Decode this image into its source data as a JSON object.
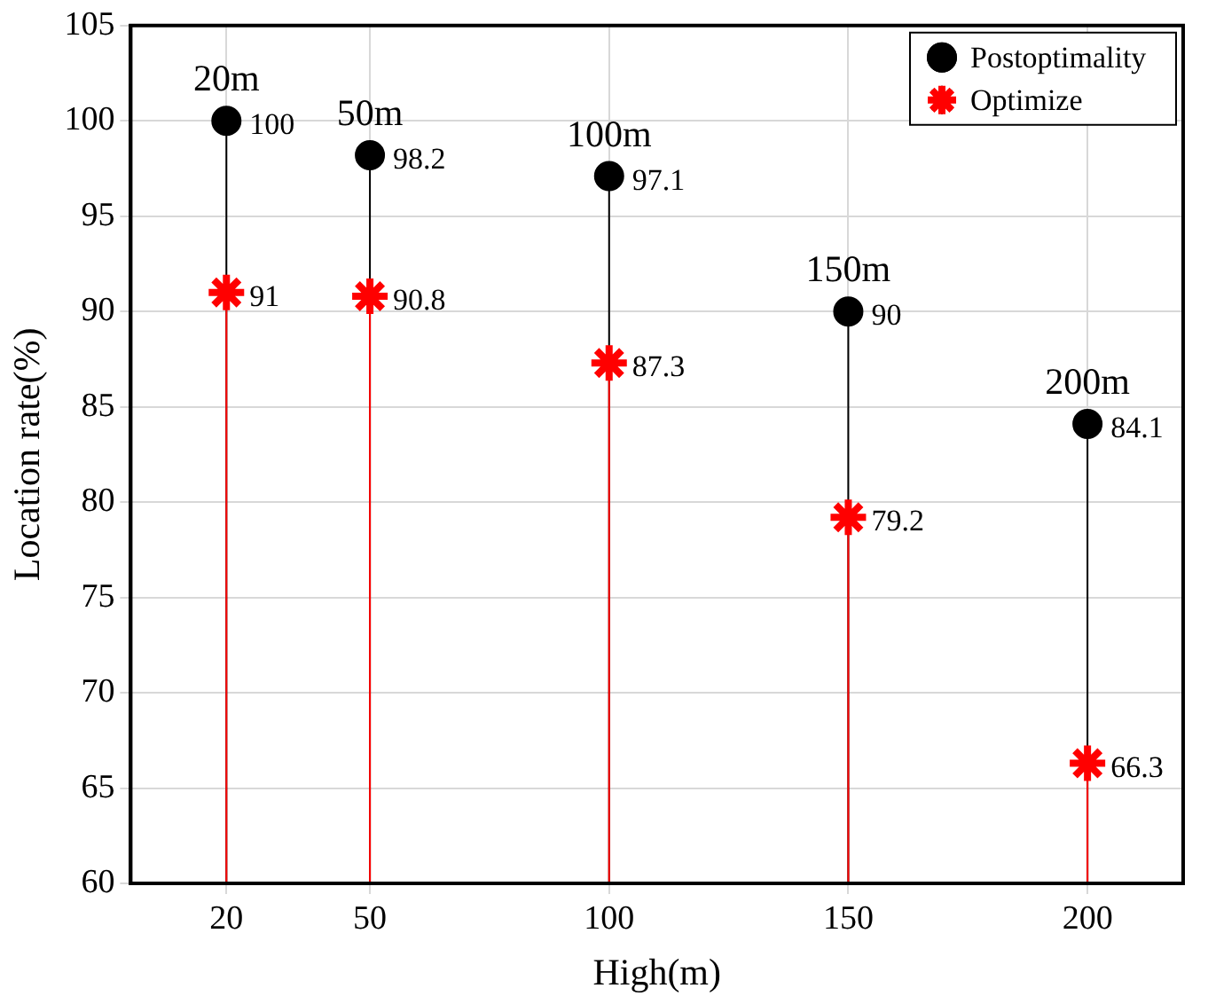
{
  "chart_data": {
    "type": "lollipop",
    "xlabel": "High(m)",
    "ylabel": "Location rate(%)",
    "x": [
      20,
      50,
      100,
      150,
      200
    ],
    "series": [
      {
        "name": "Postoptimality",
        "color": "#000000",
        "marker": "circle",
        "values": [
          100,
          98.2,
          97.1,
          90,
          84.1
        ]
      },
      {
        "name": "Optimize",
        "color": "#ff0000",
        "marker": "cross",
        "values": [
          91,
          90.8,
          87.3,
          79.2,
          66.3
        ]
      }
    ],
    "xlim": [
      0,
      220
    ],
    "xticks": [
      20,
      50,
      100,
      150,
      200
    ],
    "ylim": [
      60,
      105
    ],
    "yticks": [
      60,
      65,
      70,
      75,
      80,
      85,
      90,
      95,
      100,
      105
    ],
    "data_labels": true,
    "grid": true,
    "legend": "top right",
    "annotations": [
      {
        "text": "20m",
        "x": 20,
        "y": 100
      },
      {
        "text": "50m",
        "x": 50,
        "y": 98.2
      },
      {
        "text": "100m",
        "x": 100,
        "y": 97.1
      },
      {
        "text": "150m",
        "x": 150,
        "y": 90
      },
      {
        "text": "200m",
        "x": 200,
        "y": 84.1
      }
    ]
  }
}
